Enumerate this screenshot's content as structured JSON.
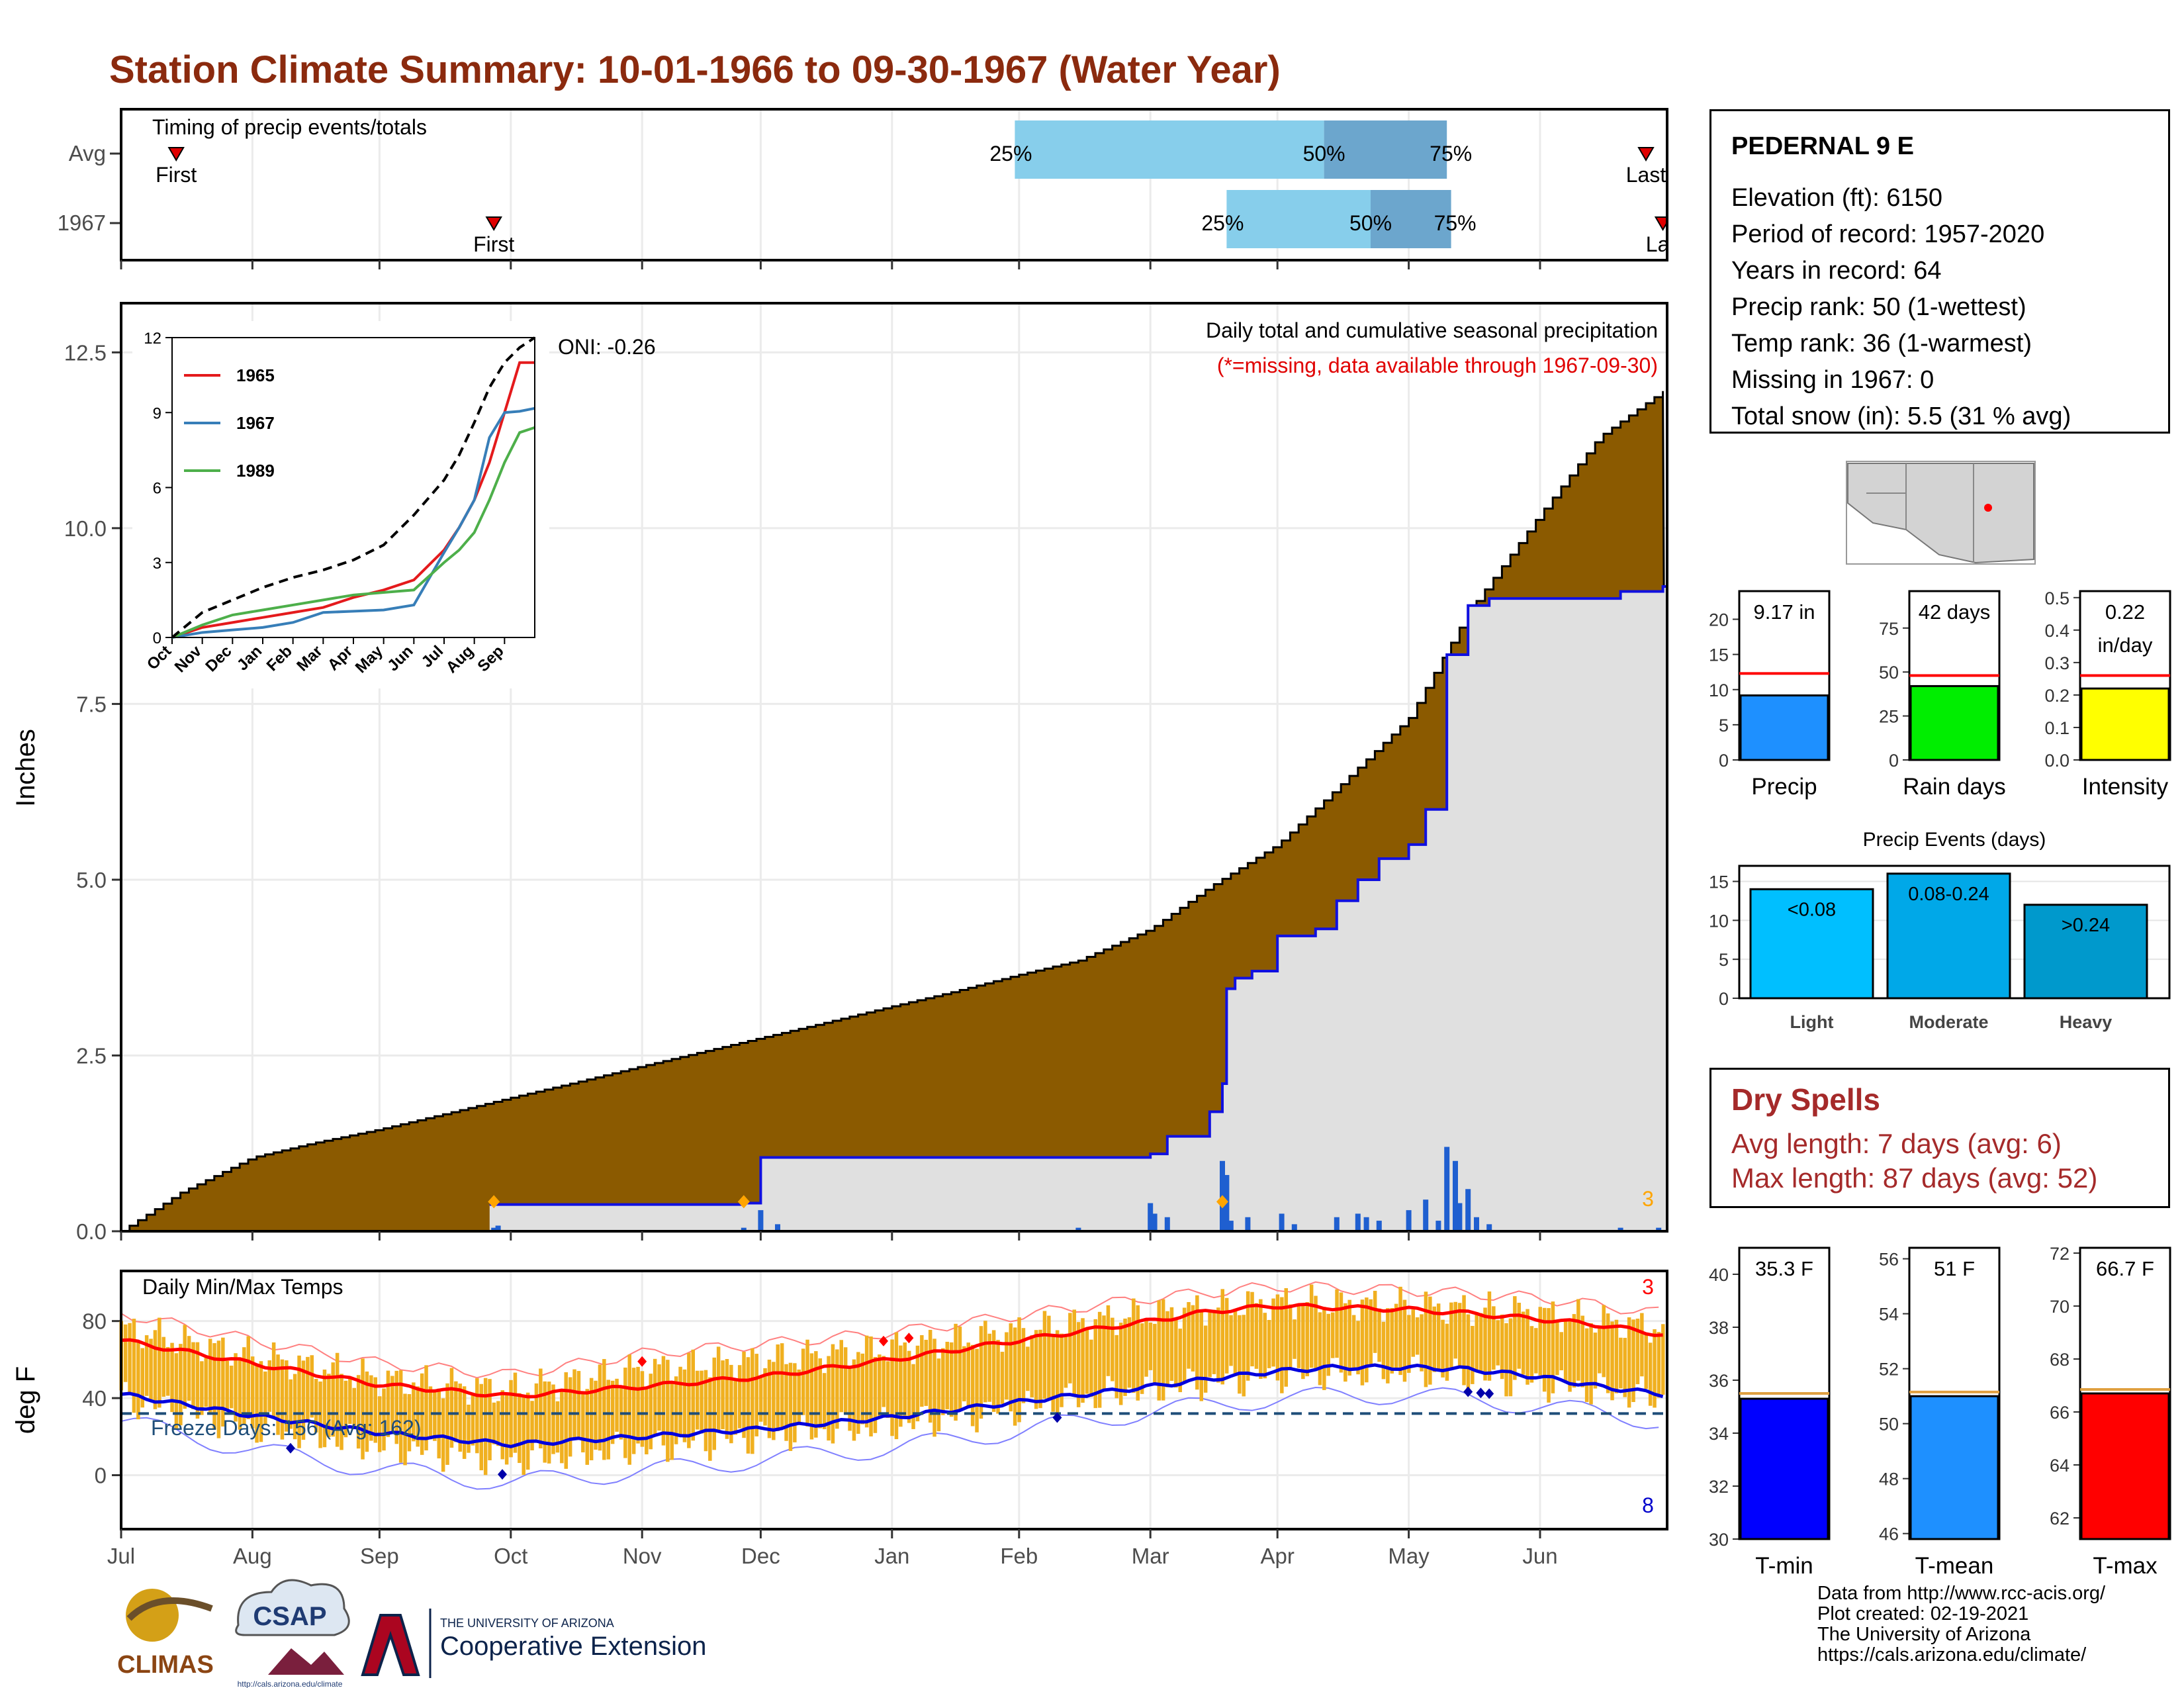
{
  "title": "Station Climate Summary: 10-01-1966 to 09-30-1967 (Water Year)",
  "station": {
    "name": "PEDERNAL 9 E",
    "lines": [
      "Elevation (ft): 6150",
      "Period of record: 1957-2020",
      "Years in record: 64",
      "Precip rank: 50 (1-wettest)",
      "Temp rank: 36 (1-warmest)",
      "Missing in 1967: 0",
      "Total snow (in): 5.5 (31 % avg)"
    ]
  },
  "dry_spells": {
    "heading": "Dry Spells",
    "avg": "Avg length: 7 days (avg: 6)",
    "max": "Max length: 87 days (avg: 52)"
  },
  "credits": [
    "Data from http://www.rcc-acis.org/",
    "Plot created: 02-19-2021",
    "The University of Arizona",
    "https://cals.arizona.edu/climate/"
  ],
  "logos": {
    "climas": "CLIMAS",
    "csap": "CSAP",
    "csap_url": "http://cals.arizona.edu/climate",
    "ua_small": "THE UNIVERSITY OF ARIZONA",
    "ua_big": "Cooperative Extension"
  },
  "colors": {
    "title": "#8b2a0e",
    "cum_fill": "#8b5a00",
    "cum_current": "#1010e0",
    "bars": "#1f5fd0",
    "temp_bar": "#f0b020",
    "tmax": "#ff0000",
    "tmin": "#0000dd",
    "dry": "#a52a2a"
  },
  "chart_data": [
    {
      "type": "bar",
      "panel": "timing",
      "title": "Timing of precip events/totals",
      "rows": [
        {
          "label": "Avg",
          "first": "Oct 14",
          "last": "Sep 26",
          "p25": "Apr 30",
          "p50": "Jul 12",
          "p75": "Aug 10",
          "first_label": "First",
          "last_label": "Last"
        },
        {
          "label": "1967",
          "first": "Dec 28",
          "last": "Sep 30",
          "p25": "Jun 19",
          "p50": "Jul 23",
          "p75": "Aug 11",
          "first_label": "First",
          "last_label": "Las"
        }
      ],
      "pct_labels": [
        "25%",
        "50%",
        "75%"
      ]
    },
    {
      "type": "area",
      "panel": "precipitation",
      "title": "Daily total and cumulative seasonal precipitation",
      "subtitle": "(*=missing, data available through 1967-09-30)",
      "ylabel": "Inches",
      "ylim": [
        0,
        13.2
      ],
      "yticks": [
        "0.0",
        "2.5",
        "5.0",
        "7.5",
        "10.0",
        "12.5"
      ],
      "oni": "ONI: -0.26",
      "corner_count": "3",
      "avg_cumulative": {
        "x": [
          "10-01",
          "10-15",
          "11-01",
          "11-15",
          "12-01",
          "12-15",
          "01-01",
          "01-15",
          "02-01",
          "02-15",
          "03-01",
          "03-15",
          "04-01",
          "04-15",
          "05-01",
          "05-15",
          "06-01",
          "06-15",
          "07-01",
          "07-15",
          "08-01",
          "08-15",
          "09-01",
          "09-15",
          "09-30"
        ],
        "y": [
          0,
          0.55,
          1.05,
          1.25,
          1.45,
          1.65,
          1.9,
          2.1,
          2.35,
          2.55,
          2.75,
          2.95,
          3.2,
          3.4,
          3.65,
          3.85,
          4.3,
          4.9,
          5.5,
          6.3,
          7.3,
          8.8,
          10.2,
          11.3,
          11.95
        ]
      },
      "current_cumulative": {
        "x": [
          "12-27",
          "02-25",
          "03-01",
          "06-01",
          "06-05",
          "06-15",
          "06-18",
          "06-19",
          "06-21",
          "06-25",
          "07-01",
          "07-10",
          "07-15",
          "07-20",
          "07-25",
          "08-01",
          "08-05",
          "08-10",
          "08-15",
          "08-20",
          "09-20",
          "09-30"
        ],
        "y": [
          0.38,
          0.4,
          1.05,
          1.1,
          1.35,
          1.7,
          2.1,
          3.45,
          3.6,
          3.7,
          4.2,
          4.3,
          4.7,
          5.0,
          5.3,
          5.5,
          6.0,
          8.2,
          8.9,
          9.0,
          9.1,
          9.17
        ]
      },
      "daily_bars": {
        "x": [
          "12-28",
          "12-29",
          "02-25",
          "03-01",
          "03-05",
          "05-15",
          "06-01",
          "06-02",
          "06-05",
          "06-18",
          "06-19",
          "06-20",
          "06-24",
          "07-02",
          "07-05",
          "07-15",
          "07-20",
          "07-22",
          "07-25",
          "08-01",
          "08-05",
          "08-08",
          "08-10",
          "08-12",
          "08-13",
          "08-15",
          "08-17",
          "08-20",
          "09-20",
          "09-29"
        ],
        "y": [
          0.05,
          0.08,
          0.05,
          0.3,
          0.1,
          0.05,
          0.4,
          0.25,
          0.2,
          1.0,
          0.8,
          0.15,
          0.2,
          0.25,
          0.1,
          0.2,
          0.25,
          0.2,
          0.15,
          0.3,
          0.45,
          0.15,
          1.2,
          1.0,
          0.4,
          0.6,
          0.2,
          0.1,
          0.05,
          0.05
        ]
      },
      "snow_markers": [
        "12-28",
        "02-25",
        "06-18"
      ],
      "inset": {
        "type": "line",
        "ylim": [
          0,
          12
        ],
        "yticks": [
          "0",
          "3",
          "6",
          "9",
          "12"
        ],
        "xticks": [
          "Oct",
          "Nov",
          "Dec",
          "Jan",
          "Feb",
          "Mar",
          "Apr",
          "May",
          "Jun",
          "Jul",
          "Aug",
          "Sep"
        ],
        "series": [
          {
            "name": "1965",
            "color": "#e41a1c",
            "x": [
              0,
              1,
              2,
              3,
              4,
              5,
              6,
              7,
              8,
              9,
              9.5,
              10,
              10.5,
              11,
              11.5,
              12
            ],
            "y": [
              0,
              0.4,
              0.6,
              0.8,
              1.0,
              1.2,
              1.6,
              1.9,
              2.3,
              3.5,
              4.4,
              5.5,
              7.0,
              9.0,
              11.0,
              11.0
            ]
          },
          {
            "name": "1967",
            "color": "#377eb8",
            "x": [
              0,
              1,
              2,
              3,
              4,
              5,
              6,
              7,
              8,
              9,
              9.5,
              10,
              10.5,
              11,
              11.5,
              12
            ],
            "y": [
              0,
              0.2,
              0.3,
              0.4,
              0.6,
              1.0,
              1.05,
              1.1,
              1.3,
              3.4,
              4.4,
              5.5,
              8.0,
              9.0,
              9.05,
              9.17
            ]
          },
          {
            "name": "1989",
            "color": "#4daf4a",
            "x": [
              0,
              1,
              2,
              3,
              4,
              5,
              6,
              7,
              8,
              9,
              9.5,
              10,
              10.5,
              11,
              11.5,
              12
            ],
            "y": [
              0,
              0.5,
              0.9,
              1.1,
              1.3,
              1.5,
              1.7,
              1.8,
              1.9,
              3.0,
              3.5,
              4.2,
              5.5,
              7.0,
              8.2,
              8.4
            ]
          },
          {
            "name": "",
            "color": "#000000",
            "dash": true,
            "x": [
              0,
              1,
              2,
              3,
              4,
              5,
              6,
              7,
              8,
              9,
              9.5,
              10,
              10.5,
              11,
              11.5,
              12
            ],
            "y": [
              0,
              1.0,
              1.5,
              2.0,
              2.4,
              2.7,
              3.1,
              3.7,
              4.9,
              6.3,
              7.3,
              8.6,
              10.0,
              11.0,
              11.6,
              12.0
            ]
          }
        ]
      }
    },
    {
      "type": "bar",
      "panel": "temperature",
      "title": "Daily Min/Max Temps",
      "ylabel": "deg F",
      "ylim": [
        -28,
        106
      ],
      "yticks": [
        "0",
        "40",
        "80"
      ],
      "freeze_label": "Freeze Days: 156 (Avg: 162)",
      "freeze_line": 32,
      "top_count": "3",
      "bottom_count": "8",
      "normal_max": {
        "x": [
          "10-01",
          "11-01",
          "12-01",
          "01-01",
          "02-01",
          "03-01",
          "04-01",
          "05-01",
          "06-01",
          "06-15",
          "07-01",
          "07-15",
          "08-01",
          "08-15",
          "09-01",
          "09-15",
          "09-30"
        ],
        "y": [
          70,
          58,
          47,
          41,
          46,
          51,
          60,
          70,
          80,
          85,
          88,
          87,
          86,
          84,
          81,
          78,
          73
        ]
      },
      "normal_min": {
        "x": [
          "10-01",
          "11-01",
          "12-01",
          "01-01",
          "02-01",
          "03-01",
          "04-01",
          "05-01",
          "06-01",
          "06-15",
          "07-01",
          "07-15",
          "08-01",
          "08-15",
          "09-01",
          "09-15",
          "09-30"
        ],
        "y": [
          42,
          31,
          22,
          16,
          20,
          24,
          30,
          38,
          46,
          50,
          54,
          56,
          56,
          55,
          51,
          46,
          42
        ]
      },
      "daily_max_env": {
        "x": [
          "10-01",
          "11-01",
          "12-01",
          "01-01",
          "02-01",
          "03-01",
          "04-01",
          "05-01",
          "06-01",
          "07-01",
          "08-01",
          "09-01",
          "09-30"
        ],
        "y": [
          76,
          62,
          50,
          44,
          55,
          60,
          66,
          75,
          84,
          90,
          88,
          84,
          76
        ]
      },
      "daily_min_env": {
        "x": [
          "10-01",
          "11-01",
          "12-01",
          "01-01",
          "02-01",
          "03-01",
          "04-01",
          "05-01",
          "06-01",
          "07-01",
          "08-01",
          "09-01",
          "09-30"
        ],
        "y": [
          40,
          25,
          15,
          8,
          14,
          20,
          26,
          35,
          45,
          52,
          54,
          48,
          40
        ]
      },
      "record_max_markers": [
        "02-01",
        "03-30",
        "04-05"
      ],
      "record_min_markers": [
        "11-10",
        "12-30",
        "05-10",
        "08-15",
        "08-18",
        "08-20"
      ],
      "xticks": [
        "Oct",
        "Nov",
        "Dec",
        "Jan",
        "Feb",
        "Mar",
        "Apr",
        "May",
        "Jun",
        "Jul",
        "Aug",
        "Sep"
      ]
    },
    {
      "type": "bar",
      "panel": "summary-precip",
      "bars": [
        {
          "label": "Precip",
          "value": 9.17,
          "avg": 12.3,
          "text": "9.17 in",
          "ylim": [
            0,
            24
          ],
          "yticks": [
            "0",
            "5",
            "10",
            "15",
            "20"
          ],
          "color": "#1e90ff"
        },
        {
          "label": "Rain days",
          "value": 42,
          "avg": 48,
          "text": "42 days",
          "ylim": [
            0,
            96
          ],
          "yticks": [
            "0",
            "25",
            "50",
            "75"
          ],
          "color": "#00ee00"
        },
        {
          "label": "Intensity",
          "value": 0.22,
          "avg": 0.26,
          "text": "0.22\nin/day",
          "ylim": [
            0,
            0.52
          ],
          "yticks": [
            "0.0",
            "0.1",
            "0.2",
            "0.3",
            "0.4",
            "0.5"
          ],
          "color": "#ffff00"
        }
      ]
    },
    {
      "type": "bar",
      "panel": "precip-events",
      "title": "Precip Events (days)",
      "categories": [
        "Light",
        "Moderate",
        "Heavy"
      ],
      "values": [
        14,
        16,
        12
      ],
      "bar_labels": [
        "<0.08",
        "0.08-0.24",
        ">0.24"
      ],
      "colors": [
        "#00bfff",
        "#00a8e8",
        "#0099cc"
      ],
      "ylim": [
        0,
        17
      ],
      "yticks": [
        "0",
        "5",
        "10",
        "15"
      ]
    },
    {
      "type": "bar",
      "panel": "summary-temp",
      "bars": [
        {
          "label": "T-min",
          "value": 35.3,
          "avg": 35.5,
          "text": "35.3 F",
          "ylim": [
            30,
            41
          ],
          "yticks": [
            "30",
            "32",
            "34",
            "36",
            "38",
            "40"
          ],
          "color": "#0000ff"
        },
        {
          "label": "T-mean",
          "value": 51,
          "avg": 51.15,
          "text": "51 F",
          "ylim": [
            45.8,
            56.4
          ],
          "yticks": [
            "46",
            "48",
            "50",
            "52",
            "54",
            "56"
          ],
          "color": "#1e90ff"
        },
        {
          "label": "T-max",
          "value": 66.7,
          "avg": 66.85,
          "text": "66.7 F",
          "ylim": [
            61.2,
            72.2
          ],
          "yticks": [
            "62",
            "64",
            "66",
            "68",
            "70",
            "72"
          ],
          "color": "#ff0000"
        }
      ]
    }
  ]
}
